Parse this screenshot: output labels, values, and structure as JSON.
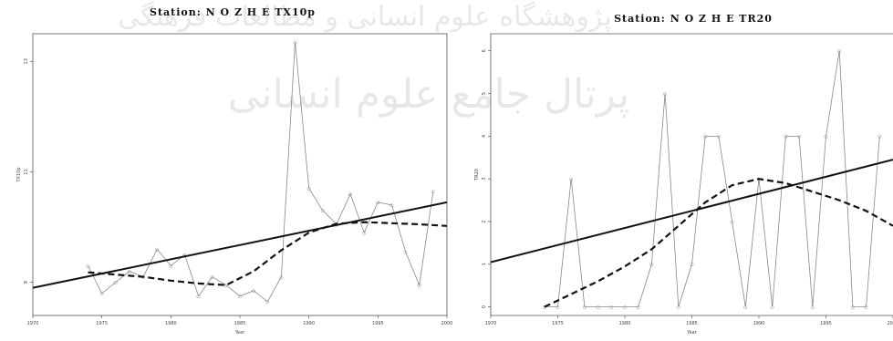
{
  "watermark": {
    "line1": "پژوهشگاه علوم انسانی و مطالعات فرهنگی",
    "line2": "پرتال جامع علوم انسانی"
  },
  "chart_data": [
    {
      "type": "line",
      "title": "Station: N O Z H E      TX10p",
      "xlabel": "Year",
      "ylabel": "TX10p",
      "xlim": [
        1970,
        2000
      ],
      "xticks": [
        1970,
        1975,
        1980,
        1985,
        1990,
        1995,
        2000
      ],
      "ylim": [
        8.4,
        13.5
      ],
      "yticks": [
        9,
        11,
        13
      ],
      "series": [
        {
          "style": "observed",
          "x": [
            1974,
            1975,
            1976,
            1977,
            1978,
            1979,
            1980,
            1981,
            1982,
            1983,
            1984,
            1985,
            1986,
            1987,
            1988,
            1989,
            1990,
            1991,
            1992,
            1993,
            1994,
            1995,
            1996,
            1997,
            1998,
            1999
          ],
          "y": [
            9.3,
            8.8,
            9.0,
            9.2,
            9.1,
            9.6,
            9.3,
            9.5,
            8.75,
            9.1,
            8.95,
            8.75,
            8.85,
            8.65,
            9.1,
            13.35,
            10.7,
            10.3,
            10.05,
            10.6,
            9.9,
            10.45,
            10.4,
            9.55,
            8.95,
            10.65
          ]
        },
        {
          "style": "loess",
          "x": [
            1974,
            1976,
            1978,
            1980,
            1982,
            1984,
            1986,
            1988,
            1990,
            1992,
            1994,
            1996,
            1998,
            2000
          ],
          "y": [
            9.18,
            9.14,
            9.1,
            9.03,
            8.98,
            8.95,
            9.2,
            9.58,
            9.9,
            10.06,
            10.09,
            10.07,
            10.05,
            10.02
          ]
        },
        {
          "style": "trend",
          "x": [
            1970,
            2000
          ],
          "y": [
            8.9,
            10.45
          ]
        }
      ]
    },
    {
      "type": "line",
      "title": "Station: N O Z H E      TR20",
      "xlabel": "Year",
      "ylabel": "TR20",
      "xlim": [
        1970,
        2000
      ],
      "xticks": [
        1970,
        1975,
        1980,
        1985,
        1990,
        1995,
        2000
      ],
      "ylim": [
        -0.2,
        6.4
      ],
      "yticks": [
        0,
        1,
        2,
        3,
        4,
        5,
        6
      ],
      "series": [
        {
          "style": "observed",
          "x": [
            1974,
            1975,
            1976,
            1977,
            1978,
            1979,
            1980,
            1981,
            1982,
            1983,
            1984,
            1985,
            1986,
            1987,
            1988,
            1989,
            1990,
            1991,
            1992,
            1993,
            1994,
            1995,
            1996,
            1997,
            1998,
            1999
          ],
          "y": [
            0,
            0,
            3,
            0,
            0,
            0,
            0,
            0,
            1,
            5,
            0,
            1,
            4,
            4,
            2,
            0,
            3,
            0,
            4,
            4,
            0,
            4,
            6,
            0,
            0,
            4
          ]
        },
        {
          "style": "loess",
          "x": [
            1974,
            1976,
            1978,
            1980,
            1982,
            1984,
            1986,
            1988,
            1990,
            1992,
            1994,
            1996,
            1998,
            2000
          ],
          "y": [
            0.0,
            0.3,
            0.6,
            0.95,
            1.35,
            1.9,
            2.45,
            2.85,
            3.0,
            2.9,
            2.7,
            2.5,
            2.25,
            1.9
          ]
        },
        {
          "style": "trend",
          "x": [
            1970,
            2000
          ],
          "y": [
            1.05,
            3.45
          ]
        }
      ]
    }
  ]
}
